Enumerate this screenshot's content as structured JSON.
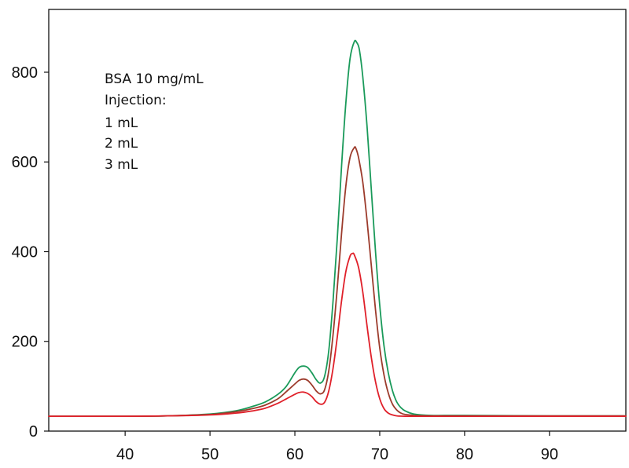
{
  "chart_data": {
    "type": "line",
    "title": "",
    "xlabel": "",
    "ylabel": "",
    "xlim": [
      31,
      99
    ],
    "ylim": [
      0,
      940
    ],
    "x_ticks": [
      40,
      50,
      60,
      70,
      80,
      90
    ],
    "y_ticks": [
      0,
      200,
      400,
      600,
      800
    ],
    "x_tick_labels": [
      "40",
      "50",
      "60",
      "70",
      "80",
      "90"
    ],
    "y_tick_labels": [
      "0",
      "200",
      "400",
      "600",
      "800"
    ],
    "grid": false,
    "annotation_lines": [
      "BSA 10 mg/mL",
      "Injection:",
      "1 mL",
      "2 mL",
      "3 mL"
    ],
    "series": [
      {
        "name": "3 mL",
        "color": "#1a9a5a",
        "x": [
          31,
          40,
          45,
          50,
          53,
          55,
          56.5,
          58,
          59,
          60,
          60.5,
          61,
          61.5,
          62,
          62.5,
          63,
          63.5,
          64,
          64.5,
          65,
          65.5,
          66,
          66.5,
          67,
          67.3,
          67.6,
          68,
          68.5,
          69,
          69.5,
          70,
          70.5,
          71,
          71.5,
          72,
          72.5,
          73,
          74,
          76,
          80,
          90,
          99
        ],
        "values": [
          33,
          33,
          34,
          38,
          45,
          55,
          65,
          82,
          100,
          130,
          142,
          145,
          142,
          130,
          115,
          107,
          122,
          180,
          290,
          430,
          590,
          730,
          830,
          868,
          866,
          850,
          790,
          680,
          540,
          400,
          280,
          190,
          130,
          90,
          65,
          52,
          45,
          38,
          35,
          35,
          34,
          34
        ]
      },
      {
        "name": "2 mL",
        "color": "#9c3b2c",
        "x": [
          31,
          40,
          45,
          50,
          53,
          55,
          56.5,
          58,
          59,
          60,
          60.5,
          61,
          61.5,
          62,
          62.5,
          63,
          63.5,
          64,
          64.5,
          65,
          65.5,
          66,
          66.5,
          67,
          67.2,
          67.5,
          68,
          68.5,
          69,
          69.5,
          70,
          70.5,
          71,
          71.5,
          72,
          72.5,
          73,
          74,
          76,
          80,
          90,
          99
        ],
        "values": [
          33,
          33,
          34,
          37,
          43,
          50,
          58,
          72,
          88,
          105,
          113,
          116,
          113,
          103,
          90,
          83,
          92,
          135,
          215,
          320,
          440,
          545,
          610,
          632,
          630,
          610,
          555,
          470,
          370,
          270,
          185,
          125,
          85,
          60,
          47,
          40,
          37,
          35,
          34,
          34,
          34,
          34
        ]
      },
      {
        "name": "1 mL",
        "color": "#e0202a",
        "x": [
          31,
          40,
          45,
          50,
          53,
          55,
          56.5,
          58,
          59,
          60,
          60.5,
          61,
          61.5,
          62,
          62.5,
          63,
          63.5,
          64,
          64.5,
          65,
          65.5,
          66,
          66.5,
          66.8,
          67,
          67.5,
          68,
          68.5,
          69,
          69.5,
          70,
          70.5,
          71,
          71.5,
          72,
          73,
          74,
          76,
          80,
          90,
          99
        ],
        "values": [
          33,
          33,
          34,
          36,
          40,
          45,
          51,
          62,
          72,
          82,
          86,
          87,
          84,
          77,
          66,
          60,
          64,
          90,
          140,
          210,
          290,
          355,
          390,
          396,
          393,
          365,
          310,
          235,
          165,
          110,
          72,
          50,
          40,
          36,
          34,
          33,
          33,
          33,
          33,
          33,
          33
        ]
      }
    ]
  }
}
